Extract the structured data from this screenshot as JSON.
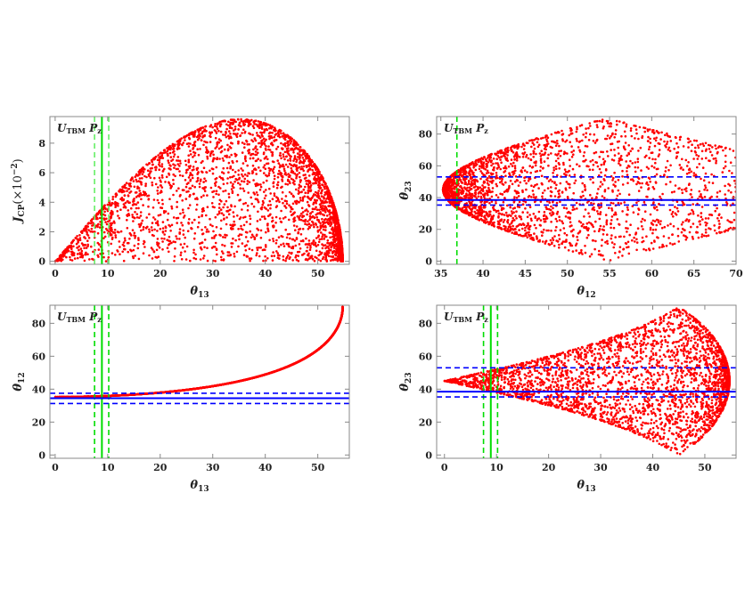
{
  "chart_data": [
    {
      "type": "scatter",
      "annotation": {
        "main1": "U",
        "sub1": "TBM",
        "main2": " P",
        "sub2": "z"
      },
      "xlabel": {
        "symbol": "θ",
        "sub": "13"
      },
      "ylabel": {
        "symbol": "J",
        "sub": "CP",
        "suffix": "(×10",
        "sup": "−2",
        "close": ")"
      },
      "xlim": [
        -1,
        56
      ],
      "ylim": [
        -0.2,
        9.8
      ],
      "xticks": [
        "0",
        "10",
        "20",
        "30",
        "40",
        "50"
      ],
      "yticks": [
        "0",
        "2",
        "4",
        "6",
        "8"
      ],
      "x_quantity": "theta13",
      "y_quantity": "Jcp_x100",
      "point_color": "#ff0000",
      "reference_lines": [
        {
          "axis": "x",
          "value": 8.9,
          "style": "solid",
          "color": "#00dd00"
        },
        {
          "axis": "x",
          "value": 7.5,
          "style": "dashed",
          "color": "#66ee66"
        },
        {
          "axis": "x",
          "value": 10.2,
          "style": "dashed",
          "color": "#66ee66"
        }
      ],
      "grid": false
    },
    {
      "type": "scatter",
      "annotation": {
        "main1": "U",
        "sub1": "TBM",
        "main2": " P",
        "sub2": "z"
      },
      "xlabel": {
        "symbol": "θ",
        "sub": "12"
      },
      "ylabel": {
        "symbol": "θ",
        "sub": "23"
      },
      "xlim": [
        34.5,
        70
      ],
      "ylim": [
        -2,
        91
      ],
      "xticks": [
        "35",
        "40",
        "45",
        "50",
        "55",
        "60",
        "65",
        "70"
      ],
      "yticks": [
        "0",
        "20",
        "40",
        "60",
        "80"
      ],
      "x_quantity": "theta12",
      "y_quantity": "theta23",
      "point_color": "#ff0000",
      "reference_lines": [
        {
          "axis": "x",
          "value": 36.9,
          "style": "dashed",
          "color": "#00dd00"
        },
        {
          "axis": "y",
          "value": 38.5,
          "style": "solid",
          "color": "#0000ff"
        },
        {
          "axis": "y",
          "value": 35.3,
          "style": "dashed",
          "color": "#0000ff"
        },
        {
          "axis": "y",
          "value": 53.0,
          "style": "dashed",
          "color": "#0000ff"
        }
      ],
      "grid": false
    },
    {
      "type": "scatter",
      "annotation": {
        "main1": "U",
        "sub1": "TBM",
        "main2": " P",
        "sub2": "z"
      },
      "xlabel": {
        "symbol": "θ",
        "sub": "13"
      },
      "ylabel": {
        "symbol": "θ",
        "sub": "12"
      },
      "xlim": [
        -1,
        56
      ],
      "ylim": [
        -2,
        91
      ],
      "xticks": [
        "0",
        "10",
        "20",
        "30",
        "40",
        "50"
      ],
      "yticks": [
        "0",
        "20",
        "40",
        "60",
        "80"
      ],
      "x_quantity": "theta13",
      "y_quantity": "theta12",
      "point_color": "#ff0000",
      "reference_lines": [
        {
          "axis": "x",
          "value": 8.9,
          "style": "solid",
          "color": "#00dd00"
        },
        {
          "axis": "x",
          "value": 7.5,
          "style": "dashed",
          "color": "#00dd00"
        },
        {
          "axis": "x",
          "value": 10.2,
          "style": "dashed",
          "color": "#00dd00"
        },
        {
          "axis": "y",
          "value": 34.5,
          "style": "solid",
          "color": "#0000ff"
        },
        {
          "axis": "y",
          "value": 31.3,
          "style": "dashed",
          "color": "#0000ff"
        },
        {
          "axis": "y",
          "value": 37.5,
          "style": "dashed",
          "color": "#0000ff"
        }
      ],
      "grid": false
    },
    {
      "type": "scatter",
      "annotation": {
        "main1": "U",
        "sub1": "TBM",
        "main2": " P",
        "sub2": "z"
      },
      "xlabel": {
        "symbol": "θ",
        "sub": "13"
      },
      "ylabel": {
        "symbol": "θ",
        "sub": "23"
      },
      "xlim": [
        -1.5,
        56
      ],
      "ylim": [
        -2,
        91
      ],
      "xticks": [
        "0",
        "10",
        "20",
        "30",
        "40",
        "50"
      ],
      "yticks": [
        "0",
        "20",
        "40",
        "60",
        "80"
      ],
      "x_quantity": "theta13",
      "y_quantity": "theta23",
      "point_color": "#ff0000",
      "reference_lines": [
        {
          "axis": "x",
          "value": 8.9,
          "style": "solid",
          "color": "#00dd00"
        },
        {
          "axis": "x",
          "value": 7.5,
          "style": "dashed",
          "color": "#00dd00"
        },
        {
          "axis": "x",
          "value": 10.2,
          "style": "dashed",
          "color": "#00dd00"
        },
        {
          "axis": "y",
          "value": 38.5,
          "style": "solid",
          "color": "#0000ff"
        },
        {
          "axis": "y",
          "value": 35.3,
          "style": "dashed",
          "color": "#0000ff"
        },
        {
          "axis": "y",
          "value": 53.0,
          "style": "dashed",
          "color": "#0000ff"
        }
      ],
      "grid": false
    }
  ]
}
